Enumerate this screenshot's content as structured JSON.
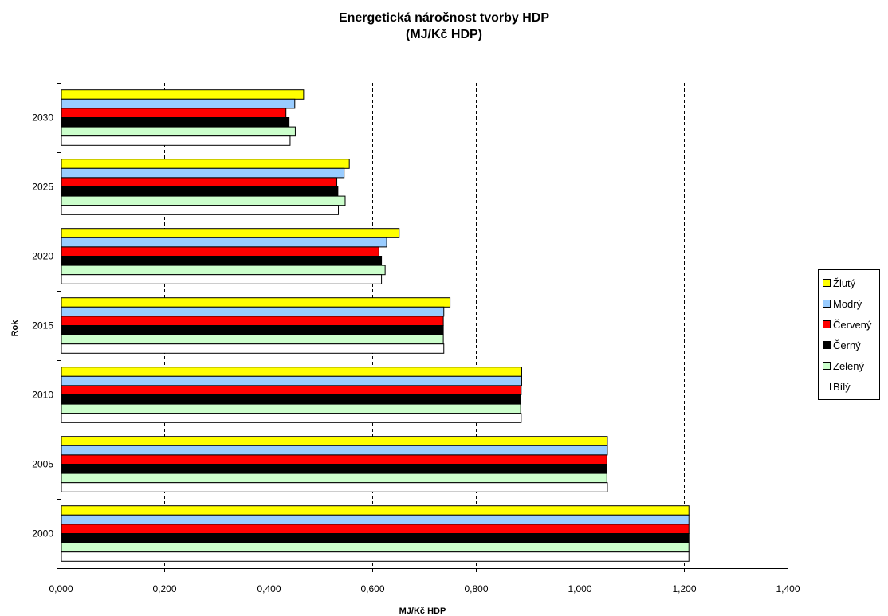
{
  "chart_data": {
    "type": "bar",
    "orientation": "horizontal",
    "title": "Energetická náročnost tvorby HDP",
    "subtitle": "(MJ/Kč HDP)",
    "xlabel": "MJ/Kč HDP",
    "ylabel": "Rok",
    "xlim": [
      0,
      1.4
    ],
    "x_ticks": [
      "0,000",
      "0,200",
      "0,400",
      "0,600",
      "0,800",
      "1,000",
      "1,200",
      "1,400"
    ],
    "categories": [
      "2030",
      "2025",
      "2020",
      "2015",
      "2010",
      "2005",
      "2000"
    ],
    "grid": "vertical dashed",
    "legend_position": "right",
    "series": [
      {
        "name": "Žlutý",
        "color": "#ffff00",
        "values": [
          0.468,
          0.556,
          0.652,
          0.75,
          0.888,
          1.053,
          1.21
        ]
      },
      {
        "name": "Modrý",
        "color": "#99ccff",
        "values": [
          0.451,
          0.546,
          0.628,
          0.738,
          0.888,
          1.053,
          1.21
        ]
      },
      {
        "name": "Červený",
        "color": "#ff0000",
        "values": [
          0.434,
          0.532,
          0.613,
          0.737,
          0.887,
          1.052,
          1.21
        ]
      },
      {
        "name": "Černý",
        "color": "#000000",
        "values": [
          0.44,
          0.534,
          0.618,
          0.737,
          0.886,
          1.052,
          1.21
        ]
      },
      {
        "name": "Zelený",
        "color": "#ccffcc",
        "values": [
          0.452,
          0.548,
          0.625,
          0.737,
          0.886,
          1.052,
          1.21
        ]
      },
      {
        "name": "Bílý",
        "color": "#ffffff",
        "values": [
          0.442,
          0.535,
          0.618,
          0.738,
          0.887,
          1.053,
          1.21
        ]
      }
    ]
  }
}
